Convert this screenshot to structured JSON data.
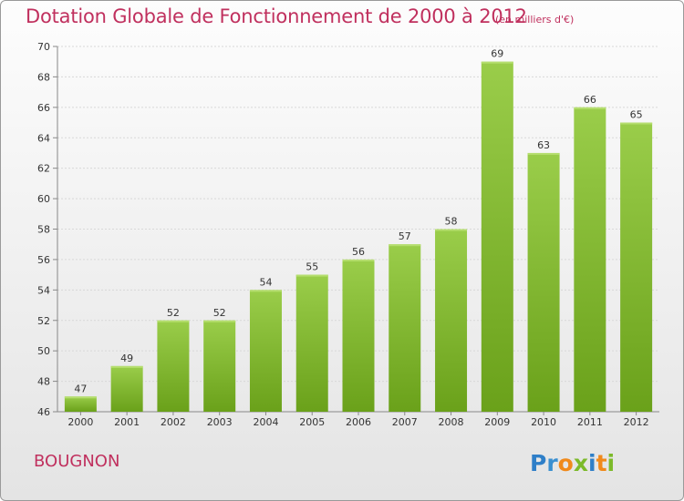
{
  "title": "Dotation Globale de Fonctionnement de 2000 à 2012",
  "unit": "(en milliers d'€)",
  "commune": "BOUGNON",
  "logo_text": "Proxiti",
  "colors": {
    "title": "#c0305e",
    "bar_light": "#9acd4a",
    "bar_dark": "#6aa11a",
    "grid": "#d8d8d8",
    "axis": "#888888"
  },
  "chart_data": {
    "type": "bar",
    "categories": [
      "2000",
      "2001",
      "2002",
      "2003",
      "2004",
      "2005",
      "2006",
      "2007",
      "2008",
      "2009",
      "2010",
      "2011",
      "2012"
    ],
    "values": [
      47,
      49,
      52,
      52,
      54,
      55,
      56,
      57,
      58,
      69,
      63,
      66,
      65
    ],
    "ylim": [
      46,
      70
    ],
    "yticks": [
      46,
      48,
      50,
      52,
      54,
      56,
      58,
      60,
      62,
      64,
      66,
      68,
      70
    ],
    "title": "Dotation Globale de Fonctionnement de 2000 à 2012",
    "xlabel": "",
    "ylabel": "",
    "grid": true
  }
}
